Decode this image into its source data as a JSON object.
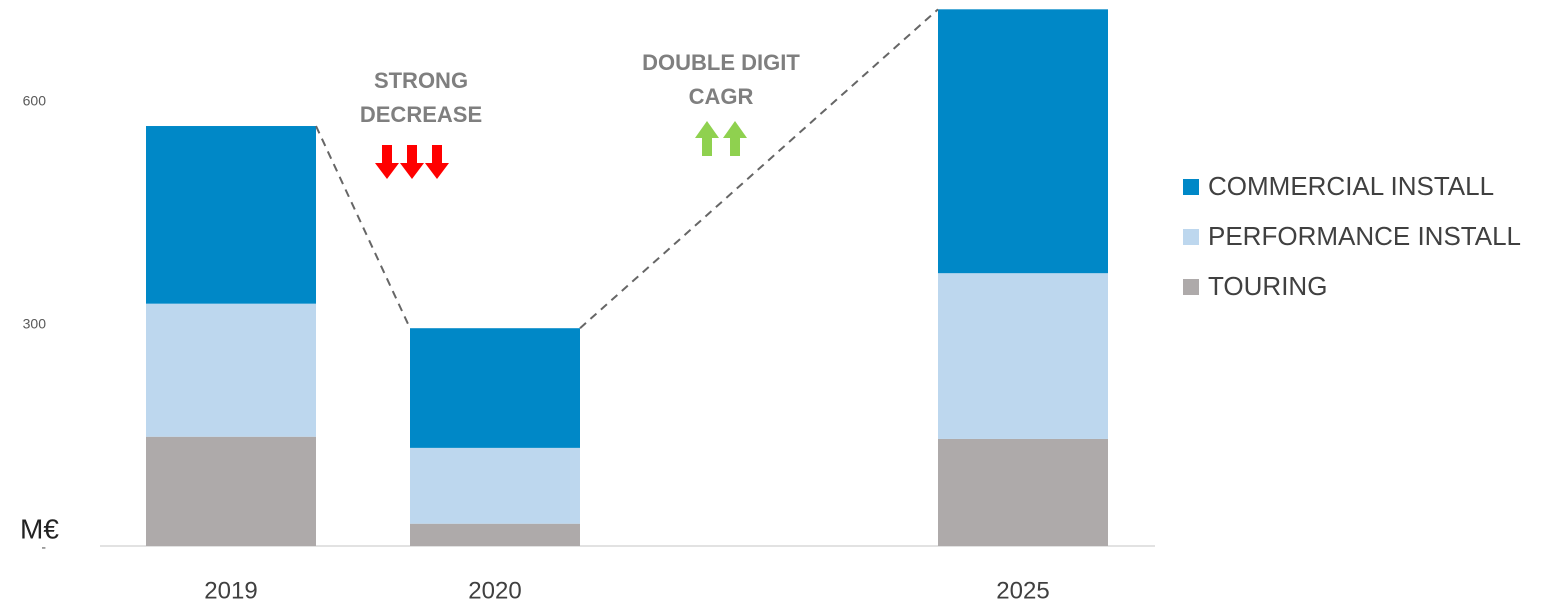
{
  "chart_data": {
    "type": "stacked-bar",
    "y_label": "M€",
    "categories": [
      "2019",
      "2020",
      null,
      "2025"
    ],
    "series": [
      {
        "name": "TOURING",
        "color": "#aeaaaa",
        "values": [
          147,
          30,
          null,
          144
        ]
      },
      {
        "name": "PERFORMANCE INSTALL",
        "color": "#bdd7ee",
        "values": [
          179,
          102,
          null,
          223
        ]
      },
      {
        "name": "COMMERCIAL INSTALL",
        "color": "#0088c7",
        "values": [
          239,
          161,
          null,
          355
        ]
      }
    ],
    "ylim": [
      0,
      730
    ],
    "yticks": [
      {
        "value": 0,
        "label": "-"
      },
      300,
      600
    ],
    "annotations": [
      [
        "STRONG",
        "DECREASE"
      ],
      [
        "DOUBLE DIGIT",
        "CAGR"
      ]
    ],
    "legend": "right"
  }
}
